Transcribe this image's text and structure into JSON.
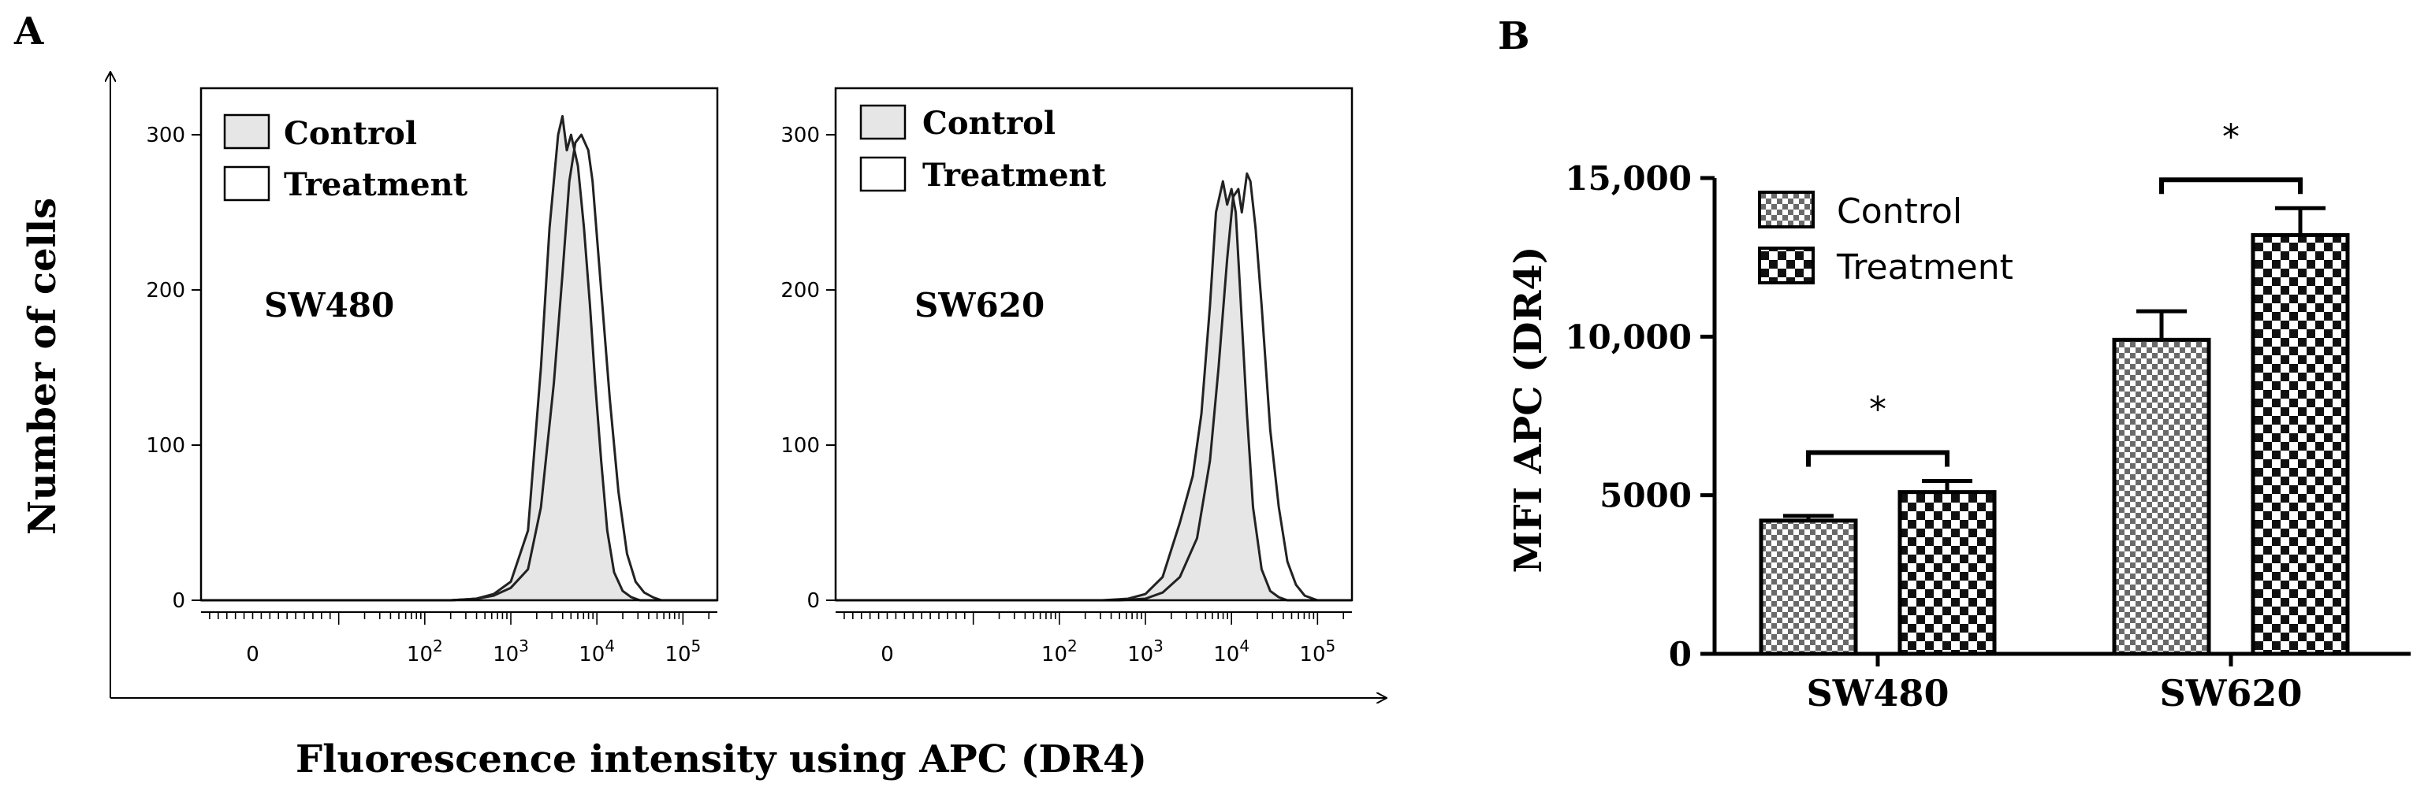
{
  "panels": {
    "a_label": "A",
    "b_label": "B"
  },
  "panel_a": {
    "y_axis_label": "Number of cells",
    "x_axis_label": "Fluorescence intensity using APC (DR4)"
  },
  "chart_data": [
    {
      "type": "area",
      "id": "histogram_sw480",
      "title": "SW480",
      "ylabel": "Number of cells",
      "xlabel": "Fluorescence intensity using APC (DR4)",
      "y_ticks": [
        0,
        100,
        200,
        300
      ],
      "y_tick_labels": [
        "0",
        "100",
        "200",
        "300"
      ],
      "ylim": [
        0,
        330
      ],
      "x_tick_labels": [
        {
          "x": 0,
          "base": "0",
          "exp": ""
        },
        {
          "x": 2,
          "base": "10",
          "exp": "2"
        },
        {
          "x": 3,
          "base": "10",
          "exp": "3"
        },
        {
          "x": 4,
          "base": "10",
          "exp": "4"
        },
        {
          "x": 5,
          "base": "10",
          "exp": "5"
        }
      ],
      "xlim": [
        -0.6,
        5.4
      ],
      "x_scale": "logicle (log10 intensity)",
      "legend": [
        "Control",
        "Treatment"
      ],
      "legend_position": "top-left",
      "series": [
        {
          "name": "Control",
          "fill": "#e6e6e6",
          "x": [
            -0.6,
            2.3,
            2.6,
            2.8,
            3.0,
            3.2,
            3.35,
            3.45,
            3.55,
            3.6,
            3.65,
            3.7,
            3.78,
            3.85,
            3.92,
            3.98,
            4.05,
            4.12,
            4.2,
            4.3,
            4.4,
            4.5,
            5.4
          ],
          "y": [
            0,
            0,
            1,
            4,
            12,
            45,
            150,
            240,
            300,
            312,
            290,
            300,
            280,
            240,
            190,
            140,
            90,
            45,
            18,
            6,
            2,
            0,
            0
          ]
        },
        {
          "name": "Treatment",
          "fill": "none",
          "x": [
            -0.6,
            2.3,
            2.6,
            2.8,
            3.0,
            3.2,
            3.35,
            3.5,
            3.6,
            3.68,
            3.75,
            3.82,
            3.9,
            3.95,
            4.05,
            4.15,
            4.25,
            4.35,
            4.45,
            4.55,
            4.65,
            4.75,
            5.4
          ],
          "y": [
            0,
            0,
            1,
            3,
            8,
            20,
            60,
            140,
            210,
            270,
            295,
            300,
            290,
            270,
            200,
            130,
            70,
            30,
            12,
            5,
            2,
            0,
            0
          ]
        }
      ]
    },
    {
      "type": "area",
      "id": "histogram_sw620",
      "title": "SW620",
      "ylabel": "Number of cells",
      "xlabel": "Fluorescence intensity using APC (DR4)",
      "y_ticks": [
        0,
        100,
        200,
        300
      ],
      "y_tick_labels": [
        "0",
        "100",
        "200",
        "300"
      ],
      "ylim": [
        0,
        330
      ],
      "x_tick_labels": [
        {
          "x": 0,
          "base": "0",
          "exp": ""
        },
        {
          "x": 2,
          "base": "10",
          "exp": "2"
        },
        {
          "x": 3,
          "base": "10",
          "exp": "3"
        },
        {
          "x": 4,
          "base": "10",
          "exp": "4"
        },
        {
          "x": 5,
          "base": "10",
          "exp": "5"
        }
      ],
      "xlim": [
        -0.6,
        5.4
      ],
      "x_scale": "logicle (log10 intensity)",
      "legend": [
        "Control",
        "Treatment"
      ],
      "legend_position": "top-left",
      "series": [
        {
          "name": "Control",
          "fill": "#e6e6e6",
          "x": [
            -0.6,
            2.5,
            2.8,
            3.0,
            3.2,
            3.4,
            3.55,
            3.65,
            3.75,
            3.82,
            3.9,
            3.95,
            4.0,
            4.05,
            4.1,
            4.18,
            4.25,
            4.35,
            4.45,
            4.55,
            4.65,
            5.4
          ],
          "y": [
            0,
            0,
            1,
            4,
            15,
            50,
            80,
            120,
            190,
            250,
            270,
            255,
            265,
            250,
            200,
            120,
            60,
            20,
            6,
            2,
            0,
            0
          ]
        },
        {
          "name": "Treatment",
          "fill": "none",
          "x": [
            -0.6,
            2.7,
            3.0,
            3.2,
            3.4,
            3.6,
            3.75,
            3.85,
            3.95,
            4.02,
            4.08,
            4.12,
            4.18,
            4.22,
            4.28,
            4.35,
            4.45,
            4.55,
            4.65,
            4.75,
            4.85,
            5.0,
            5.4
          ],
          "y": [
            0,
            0,
            1,
            5,
            15,
            40,
            90,
            150,
            220,
            260,
            265,
            250,
            275,
            270,
            240,
            190,
            110,
            60,
            25,
            10,
            3,
            0,
            0
          ]
        }
      ]
    },
    {
      "type": "bar",
      "id": "mfi_bar",
      "title": "",
      "xlabel": "",
      "ylabel": "MFI APC (DR4)",
      "categories": [
        "SW480",
        "SW620"
      ],
      "ylim": [
        0,
        15000
      ],
      "y_ticks": [
        0,
        5000,
        10000,
        15000
      ],
      "y_tick_labels": [
        "0",
        "5000",
        "10,000",
        "15,000"
      ],
      "legend_position": "top-left",
      "series": [
        {
          "name": "Control",
          "values": [
            4200,
            9900
          ],
          "errors": [
            150,
            900
          ]
        },
        {
          "name": "Treatment",
          "values": [
            5100,
            13200
          ],
          "errors": [
            350,
            850
          ]
        }
      ],
      "significance": [
        {
          "category": "SW480",
          "label": "*"
        },
        {
          "category": "SW620",
          "label": "*"
        }
      ]
    }
  ]
}
